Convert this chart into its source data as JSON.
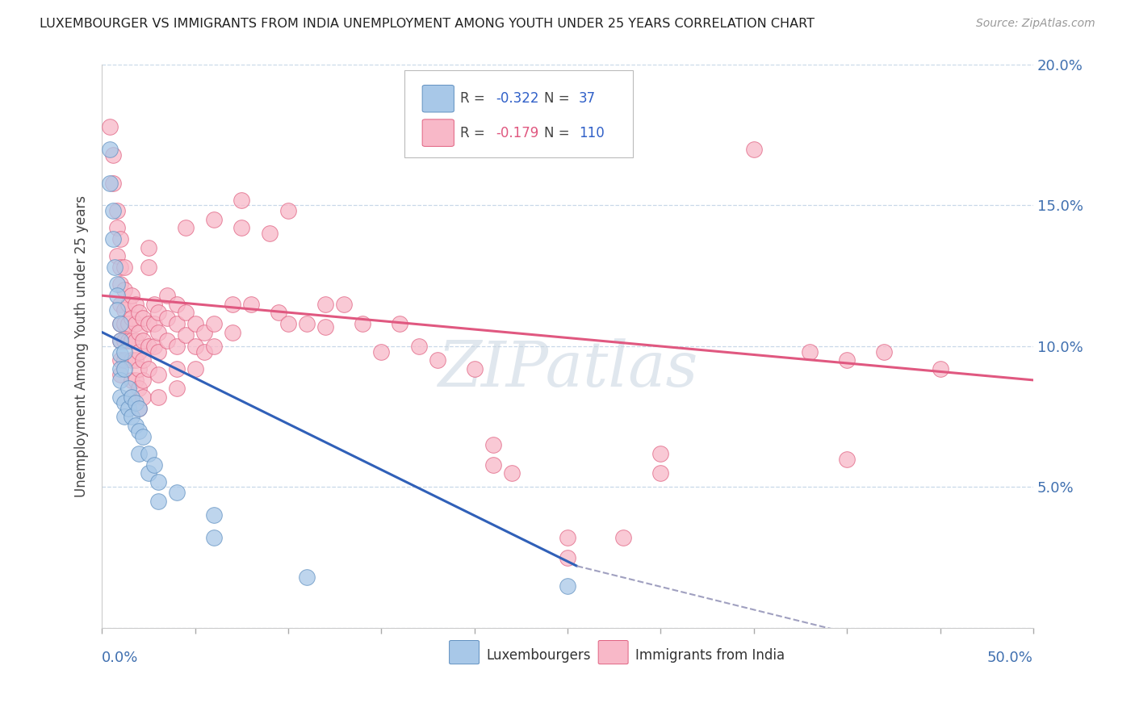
{
  "title": "LUXEMBOURGER VS IMMIGRANTS FROM INDIA UNEMPLOYMENT AMONG YOUTH UNDER 25 YEARS CORRELATION CHART",
  "source": "Source: ZipAtlas.com",
  "ylabel": "Unemployment Among Youth under 25 years",
  "x_min": 0.0,
  "x_max": 0.5,
  "y_min": 0.0,
  "y_max": 0.2,
  "yticks": [
    0.0,
    0.05,
    0.1,
    0.15,
    0.2
  ],
  "ytick_labels": [
    "",
    "5.0%",
    "10.0%",
    "15.0%",
    "20.0%"
  ],
  "watermark": "ZIPatlas",
  "blue_line_x": [
    0.0,
    0.255
  ],
  "blue_line_y": [
    0.105,
    0.022
  ],
  "pink_line_x": [
    0.0,
    0.5
  ],
  "pink_line_y": [
    0.118,
    0.088
  ],
  "dashed_line_x": [
    0.255,
    0.5
  ],
  "dashed_line_y": [
    0.022,
    -0.018
  ],
  "blue_dots": [
    [
      0.004,
      0.17
    ],
    [
      0.004,
      0.158
    ],
    [
      0.006,
      0.148
    ],
    [
      0.006,
      0.138
    ],
    [
      0.007,
      0.128
    ],
    [
      0.008,
      0.122
    ],
    [
      0.008,
      0.118
    ],
    [
      0.008,
      0.113
    ],
    [
      0.01,
      0.108
    ],
    [
      0.01,
      0.102
    ],
    [
      0.01,
      0.097
    ],
    [
      0.01,
      0.092
    ],
    [
      0.01,
      0.088
    ],
    [
      0.01,
      0.082
    ],
    [
      0.012,
      0.098
    ],
    [
      0.012,
      0.092
    ],
    [
      0.012,
      0.08
    ],
    [
      0.012,
      0.075
    ],
    [
      0.014,
      0.085
    ],
    [
      0.014,
      0.078
    ],
    [
      0.016,
      0.082
    ],
    [
      0.016,
      0.075
    ],
    [
      0.018,
      0.08
    ],
    [
      0.018,
      0.072
    ],
    [
      0.02,
      0.078
    ],
    [
      0.02,
      0.07
    ],
    [
      0.02,
      0.062
    ],
    [
      0.022,
      0.068
    ],
    [
      0.025,
      0.062
    ],
    [
      0.025,
      0.055
    ],
    [
      0.028,
      0.058
    ],
    [
      0.03,
      0.052
    ],
    [
      0.03,
      0.045
    ],
    [
      0.04,
      0.048
    ],
    [
      0.06,
      0.04
    ],
    [
      0.06,
      0.032
    ],
    [
      0.11,
      0.018
    ],
    [
      0.25,
      0.015
    ]
  ],
  "pink_dots": [
    [
      0.004,
      0.178
    ],
    [
      0.006,
      0.168
    ],
    [
      0.006,
      0.158
    ],
    [
      0.008,
      0.148
    ],
    [
      0.008,
      0.142
    ],
    [
      0.008,
      0.132
    ],
    [
      0.01,
      0.138
    ],
    [
      0.01,
      0.128
    ],
    [
      0.01,
      0.122
    ],
    [
      0.01,
      0.115
    ],
    [
      0.01,
      0.108
    ],
    [
      0.01,
      0.102
    ],
    [
      0.01,
      0.095
    ],
    [
      0.01,
      0.09
    ],
    [
      0.012,
      0.128
    ],
    [
      0.012,
      0.12
    ],
    [
      0.012,
      0.113
    ],
    [
      0.012,
      0.108
    ],
    [
      0.012,
      0.102
    ],
    [
      0.012,
      0.095
    ],
    [
      0.014,
      0.115
    ],
    [
      0.014,
      0.108
    ],
    [
      0.014,
      0.102
    ],
    [
      0.016,
      0.118
    ],
    [
      0.016,
      0.11
    ],
    [
      0.016,
      0.102
    ],
    [
      0.016,
      0.095
    ],
    [
      0.016,
      0.088
    ],
    [
      0.016,
      0.082
    ],
    [
      0.018,
      0.115
    ],
    [
      0.018,
      0.108
    ],
    [
      0.018,
      0.102
    ],
    [
      0.018,
      0.095
    ],
    [
      0.018,
      0.088
    ],
    [
      0.02,
      0.112
    ],
    [
      0.02,
      0.105
    ],
    [
      0.02,
      0.098
    ],
    [
      0.02,
      0.092
    ],
    [
      0.02,
      0.085
    ],
    [
      0.02,
      0.078
    ],
    [
      0.022,
      0.11
    ],
    [
      0.022,
      0.102
    ],
    [
      0.022,
      0.095
    ],
    [
      0.022,
      0.088
    ],
    [
      0.022,
      0.082
    ],
    [
      0.025,
      0.135
    ],
    [
      0.025,
      0.128
    ],
    [
      0.025,
      0.108
    ],
    [
      0.025,
      0.1
    ],
    [
      0.025,
      0.092
    ],
    [
      0.028,
      0.115
    ],
    [
      0.028,
      0.108
    ],
    [
      0.028,
      0.1
    ],
    [
      0.03,
      0.112
    ],
    [
      0.03,
      0.105
    ],
    [
      0.03,
      0.098
    ],
    [
      0.03,
      0.09
    ],
    [
      0.03,
      0.082
    ],
    [
      0.035,
      0.118
    ],
    [
      0.035,
      0.11
    ],
    [
      0.035,
      0.102
    ],
    [
      0.04,
      0.115
    ],
    [
      0.04,
      0.108
    ],
    [
      0.04,
      0.1
    ],
    [
      0.04,
      0.092
    ],
    [
      0.04,
      0.085
    ],
    [
      0.045,
      0.142
    ],
    [
      0.045,
      0.112
    ],
    [
      0.045,
      0.104
    ],
    [
      0.05,
      0.108
    ],
    [
      0.05,
      0.1
    ],
    [
      0.05,
      0.092
    ],
    [
      0.055,
      0.105
    ],
    [
      0.055,
      0.098
    ],
    [
      0.06,
      0.145
    ],
    [
      0.06,
      0.108
    ],
    [
      0.06,
      0.1
    ],
    [
      0.07,
      0.115
    ],
    [
      0.07,
      0.105
    ],
    [
      0.075,
      0.152
    ],
    [
      0.075,
      0.142
    ],
    [
      0.08,
      0.115
    ],
    [
      0.09,
      0.14
    ],
    [
      0.095,
      0.112
    ],
    [
      0.1,
      0.148
    ],
    [
      0.1,
      0.108
    ],
    [
      0.11,
      0.108
    ],
    [
      0.12,
      0.115
    ],
    [
      0.12,
      0.107
    ],
    [
      0.13,
      0.115
    ],
    [
      0.14,
      0.108
    ],
    [
      0.15,
      0.098
    ],
    [
      0.16,
      0.108
    ],
    [
      0.17,
      0.1
    ],
    [
      0.18,
      0.095
    ],
    [
      0.2,
      0.092
    ],
    [
      0.21,
      0.065
    ],
    [
      0.21,
      0.058
    ],
    [
      0.22,
      0.055
    ],
    [
      0.25,
      0.032
    ],
    [
      0.25,
      0.025
    ],
    [
      0.28,
      0.032
    ],
    [
      0.3,
      0.062
    ],
    [
      0.3,
      0.055
    ],
    [
      0.35,
      0.17
    ],
    [
      0.38,
      0.098
    ],
    [
      0.4,
      0.095
    ],
    [
      0.4,
      0.06
    ],
    [
      0.42,
      0.098
    ],
    [
      0.45,
      0.092
    ]
  ],
  "blue_color": "#a8c8e8",
  "blue_edge_color": "#6090c0",
  "pink_color": "#f8b8c8",
  "pink_edge_color": "#e06080",
  "blue_line_color": "#3060b8",
  "pink_line_color": "#e05880",
  "dashed_color": "#a0a0c0",
  "grid_color": "#c8d8e8",
  "axis_color": "#4070b0",
  "background_color": "#ffffff",
  "legend_R_color": "#3060c8",
  "legend_N_color": "#3060c8"
}
